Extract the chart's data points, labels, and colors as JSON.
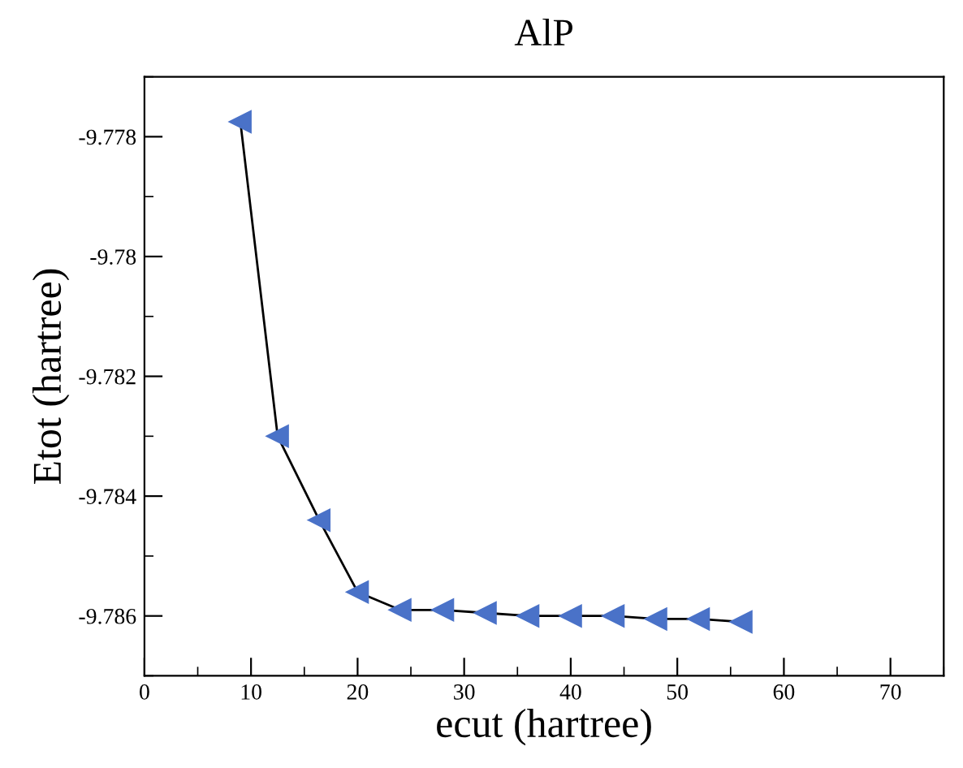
{
  "chart_data": {
    "type": "line",
    "title": "AlP",
    "xlabel": "ecut (hartree)",
    "ylabel": "Etot (hartree)",
    "x": [
      9,
      12.5,
      16.4,
      20,
      24,
      28,
      32,
      36,
      40,
      44,
      48,
      52,
      56
    ],
    "series": [
      {
        "color": "#4a72c8",
        "values": [
          -9.77775,
          -9.783,
          -9.7844,
          -9.7856,
          -9.7859,
          -9.7859,
          -9.78595,
          -9.786,
          -9.786,
          -9.786,
          -9.78605,
          -9.78605,
          -9.7861
        ]
      }
    ],
    "xlim": [
      0,
      75
    ],
    "xticks": [
      0,
      10,
      20,
      30,
      40,
      50,
      60,
      70
    ],
    "ylim": [
      -9.787,
      -9.777
    ],
    "yticks": [
      -9.786,
      -9.784,
      -9.782,
      -9.78,
      -9.778
    ],
    "grid": false,
    "legend": false,
    "marker": "triangle",
    "line_style": "solid"
  }
}
